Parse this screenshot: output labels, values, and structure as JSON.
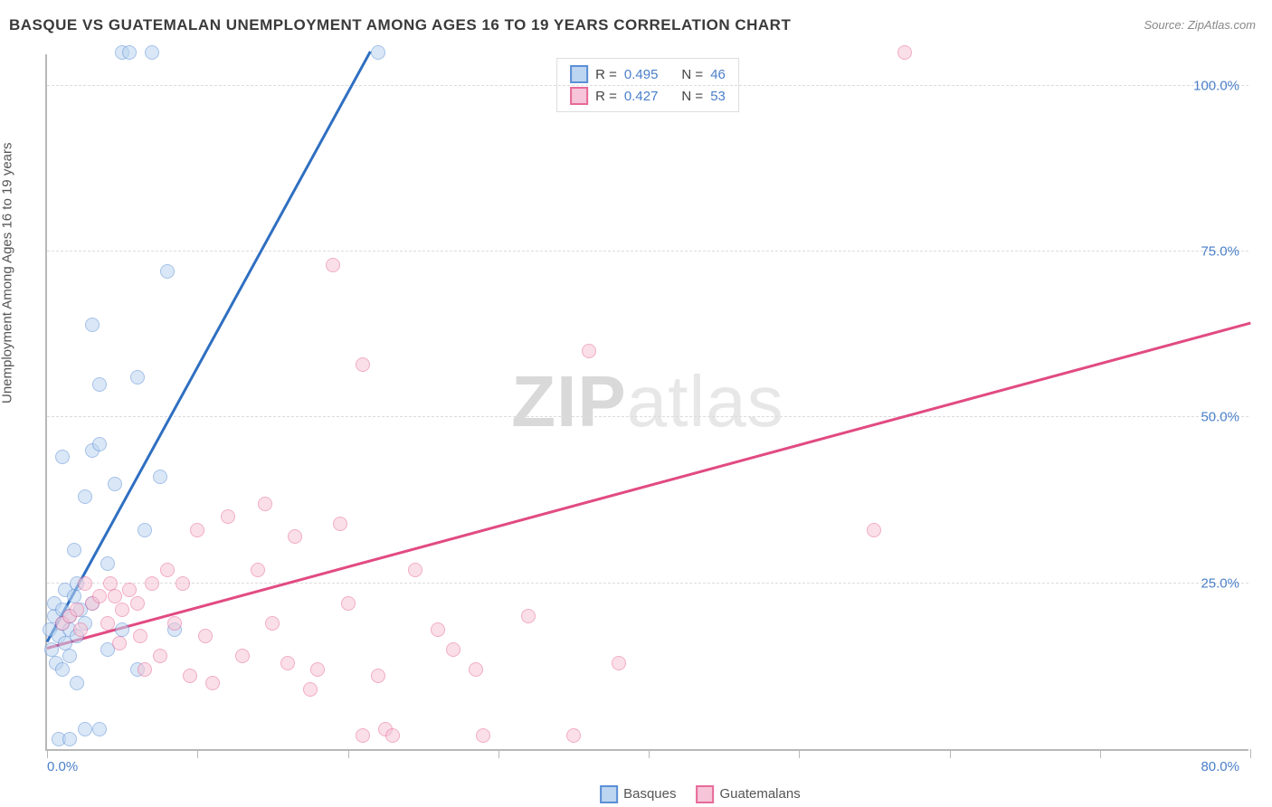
{
  "title": "BASQUE VS GUATEMALAN UNEMPLOYMENT AMONG AGES 16 TO 19 YEARS CORRELATION CHART",
  "source": "Source: ZipAtlas.com",
  "ylabel": "Unemployment Among Ages 16 to 19 years",
  "watermark_a": "ZIP",
  "watermark_b": "atlas",
  "chart": {
    "type": "scatter",
    "background_color": "#ffffff",
    "grid_color": "#dcdcdc",
    "axis_color": "#b8b8b8",
    "text_color": "#555555",
    "tick_label_color": "#4a7fc9",
    "xlim": [
      0,
      80
    ],
    "ylim": [
      0,
      105
    ],
    "xticks": [
      0,
      10,
      20,
      30,
      40,
      50,
      60,
      70,
      80
    ],
    "yticks": [
      25,
      50,
      75,
      100
    ],
    "ytick_labels": [
      "25.0%",
      "50.0%",
      "75.0%",
      "100.0%"
    ],
    "xmin_label": "0.0%",
    "xmax_label": "80.0%",
    "marker_size": 16,
    "marker_opacity": 0.55,
    "series": [
      {
        "name": "Basques",
        "color_stroke": "#5b8fd6",
        "color_fill": "#bcd5f0",
        "R": "0.495",
        "N": "46",
        "trend": {
          "x1": 0,
          "y1": 16,
          "x2": 21.5,
          "y2": 105,
          "color": "#2f6fc1",
          "width": 3
        },
        "points": [
          [
            0.2,
            18
          ],
          [
            0.3,
            15
          ],
          [
            0.5,
            20
          ],
          [
            0.5,
            22
          ],
          [
            0.6,
            13
          ],
          [
            0.8,
            17
          ],
          [
            1.0,
            19
          ],
          [
            1.0,
            21
          ],
          [
            1.2,
            16
          ],
          [
            1.2,
            24
          ],
          [
            1.5,
            18
          ],
          [
            1.5,
            20
          ],
          [
            1.8,
            23
          ],
          [
            2.0,
            25
          ],
          [
            2.0,
            17
          ],
          [
            2.5,
            19
          ],
          [
            2.5,
            38
          ],
          [
            3.0,
            22
          ],
          [
            3.0,
            45
          ],
          [
            3.5,
            46
          ],
          [
            3.5,
            55
          ],
          [
            4.0,
            28
          ],
          [
            4.5,
            40
          ],
          [
            5.0,
            105
          ],
          [
            5.5,
            105
          ],
          [
            6.0,
            56
          ],
          [
            6.5,
            33
          ],
          [
            7.0,
            105
          ],
          [
            7.5,
            41
          ],
          [
            8.0,
            72
          ],
          [
            8.5,
            18
          ],
          [
            2.0,
            10
          ],
          [
            2.5,
            3
          ],
          [
            3.5,
            3
          ],
          [
            3.0,
            64
          ],
          [
            4.0,
            15
          ],
          [
            5.0,
            18
          ],
          [
            22.0,
            105
          ],
          [
            1.0,
            12
          ],
          [
            1.5,
            14
          ],
          [
            0.8,
            1.5
          ],
          [
            1.5,
            1.5
          ],
          [
            6.0,
            12
          ],
          [
            1.0,
            44
          ],
          [
            1.8,
            30
          ],
          [
            2.2,
            21
          ]
        ]
      },
      {
        "name": "Guatemalans",
        "color_stroke": "#e76a99",
        "color_fill": "#f6c5d7",
        "R": "0.427",
        "N": "53",
        "trend": {
          "x1": 0,
          "y1": 15,
          "x2": 80,
          "y2": 64,
          "color": "#e14b82",
          "width": 3
        },
        "points": [
          [
            1.0,
            19
          ],
          [
            1.5,
            20
          ],
          [
            2.0,
            21
          ],
          [
            2.2,
            18
          ],
          [
            2.5,
            25
          ],
          [
            3.0,
            22
          ],
          [
            3.5,
            23
          ],
          [
            4.0,
            19
          ],
          [
            4.2,
            25
          ],
          [
            4.5,
            23
          ],
          [
            5.0,
            21
          ],
          [
            5.5,
            24
          ],
          [
            6.0,
            22
          ],
          [
            6.5,
            12
          ],
          [
            7.0,
            25
          ],
          [
            7.5,
            14
          ],
          [
            8.0,
            27
          ],
          [
            9.0,
            25
          ],
          [
            9.5,
            11
          ],
          [
            10.0,
            33
          ],
          [
            10.5,
            17
          ],
          [
            11.0,
            10
          ],
          [
            12.0,
            35
          ],
          [
            13.0,
            14
          ],
          [
            14.0,
            27
          ],
          [
            14.5,
            37
          ],
          [
            15.0,
            19
          ],
          [
            16.0,
            13
          ],
          [
            16.5,
            32
          ],
          [
            17.5,
            9
          ],
          [
            18.0,
            12
          ],
          [
            19.0,
            73
          ],
          [
            19.5,
            34
          ],
          [
            20.0,
            22
          ],
          [
            21.0,
            58
          ],
          [
            21.0,
            2
          ],
          [
            22.0,
            11
          ],
          [
            22.5,
            3
          ],
          [
            23.0,
            2
          ],
          [
            24.5,
            27
          ],
          [
            26.0,
            18
          ],
          [
            27.0,
            15
          ],
          [
            28.5,
            12
          ],
          [
            29.0,
            2
          ],
          [
            32.0,
            20
          ],
          [
            35.0,
            2
          ],
          [
            36.0,
            60
          ],
          [
            38.0,
            13
          ],
          [
            57.0,
            105
          ],
          [
            55.0,
            33
          ],
          [
            4.8,
            16
          ],
          [
            6.2,
            17
          ],
          [
            8.5,
            19
          ]
        ]
      }
    ],
    "legend_labels": {
      "R": "R =",
      "N": "N ="
    }
  }
}
